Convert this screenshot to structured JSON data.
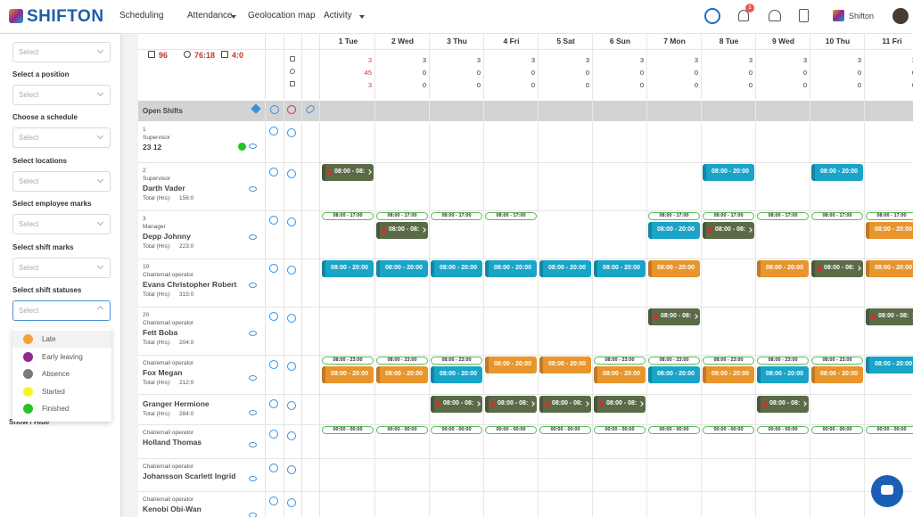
{
  "nav": {
    "logo": "SHIFTON",
    "menu": [
      "Scheduling",
      "Attendance",
      "Geolocation map",
      "Activity"
    ],
    "badge": "1",
    "user": "Shifton"
  },
  "filters": {
    "labels": [
      "Select a position",
      "Choose a schedule",
      "Select locations",
      "Select employee marks",
      "Select shift marks",
      "Select shift statuses"
    ],
    "placeholder": "Select",
    "show_hide": "Show / Hide"
  },
  "statuses": [
    {
      "name": "Late",
      "color": "#f0a23a"
    },
    {
      "name": "Early leaving",
      "color": "#8e2a8e"
    },
    {
      "name": "Absence",
      "color": "#7a7a7a"
    },
    {
      "name": "Started",
      "color": "#f5f526"
    },
    {
      "name": "Finished",
      "color": "#22c322"
    }
  ],
  "schedule": {
    "summary": [
      "96",
      "76:18",
      "4:0"
    ],
    "days": [
      "1 Tue",
      "2 Wed",
      "3 Thu",
      "4 Fri",
      "5 Sat",
      "6 Sun",
      "7 Mon",
      "8 Tue",
      "9 Wed",
      "10 Thu",
      "11 Fri"
    ],
    "counts": [
      [
        3,
        3,
        3,
        3,
        3,
        3,
        3,
        3,
        3,
        3,
        3
      ],
      [
        45,
        0,
        0,
        0,
        0,
        0,
        0,
        0,
        0,
        0,
        0
      ],
      [
        3,
        0,
        0,
        0,
        0,
        0,
        0,
        0,
        0,
        0,
        0
      ]
    ],
    "open_shifts": "Open Shifts",
    "total_label": "Total (Hrs):",
    "styles": {
      "dark": "#5b6b48",
      "blue": "#19a4c8",
      "orange": "#e8952e",
      "outline": "#5cb85c"
    },
    "employees": [
      {
        "number": "1",
        "role": "Supervisor",
        "name": "23 12",
        "total": null,
        "cells": [
          [],
          [],
          [],
          [],
          [],
          [],
          [],
          [],
          [],
          [],
          []
        ]
      },
      {
        "number": "2",
        "role": "Supervisor",
        "name": "Darth Vader",
        "total": "156:0",
        "cells": [
          [
            {
              "time": "08:00 - 08:",
              "style": "dark"
            }
          ],
          [],
          [],
          [],
          [],
          [],
          [],
          [
            {
              "time": "08:00 - 20:00",
              "style": "blue"
            }
          ],
          [],
          [
            {
              "time": "08:00 - 20:00",
              "style": "blue"
            }
          ],
          []
        ]
      },
      {
        "number": "3",
        "role": "Manager",
        "name": "Depp Johnny",
        "total": "223:0",
        "cells": [
          [
            {
              "time": "08:00 - 17:00",
              "style": "outline"
            }
          ],
          [
            {
              "time": "08:00 - 17:00",
              "style": "outline"
            },
            {
              "time": "08:00 - 08:",
              "style": "dark"
            }
          ],
          [
            {
              "time": "08:00 - 17:00",
              "style": "outline"
            }
          ],
          [
            {
              "time": "08:00 - 17:00",
              "style": "outline"
            }
          ],
          [],
          [],
          [
            {
              "time": "08:00 - 17:00",
              "style": "outline"
            },
            {
              "time": "08:00 - 20:00",
              "style": "blue"
            }
          ],
          [
            {
              "time": "08:00 - 17:00",
              "style": "outline"
            },
            {
              "time": "08:00 - 08:",
              "style": "dark"
            }
          ],
          [
            {
              "time": "08:00 - 17:00",
              "style": "outline"
            }
          ],
          [
            {
              "time": "08:00 - 17:00",
              "style": "outline"
            }
          ],
          [
            {
              "time": "08:00 - 17:00",
              "style": "outline"
            },
            {
              "time": "08:00 - 20:00",
              "style": "orange"
            }
          ]
        ]
      },
      {
        "number": "10",
        "role": "Chat/email operator",
        "name": "Evans Christopher Robert",
        "total": "315:0",
        "cells": [
          [
            {
              "time": "08:00 - 20:00",
              "style": "blue"
            }
          ],
          [
            {
              "time": "08:00 - 20:00",
              "style": "blue"
            }
          ],
          [
            {
              "time": "08:00 - 20:00",
              "style": "blue"
            }
          ],
          [
            {
              "time": "08:00 - 20:00",
              "style": "blue"
            }
          ],
          [
            {
              "time": "08:00 - 20:00",
              "style": "blue"
            }
          ],
          [
            {
              "time": "08:00 - 20:00",
              "style": "blue"
            }
          ],
          [
            {
              "time": "08:00 - 20:00",
              "style": "orange"
            }
          ],
          [],
          [
            {
              "time": "08:00 - 20:00",
              "style": "orange"
            }
          ],
          [
            {
              "time": "08:00 - 08:",
              "style": "dark"
            }
          ],
          [
            {
              "time": "08:00 - 20:00",
              "style": "orange"
            }
          ]
        ]
      },
      {
        "number": "20",
        "role": "Chat/email operator",
        "name": "Fett Boba",
        "total": "204:0",
        "cells": [
          [],
          [],
          [],
          [],
          [],
          [],
          [
            {
              "time": "08:00 - 08:",
              "style": "dark"
            }
          ],
          [],
          [],
          [],
          [
            {
              "time": "08:00 - 08:",
              "style": "dark"
            }
          ]
        ]
      },
      {
        "number": null,
        "role": "Chat/email operator",
        "name": "Fox Megan",
        "total": "212:0",
        "cells": [
          [
            {
              "time": "08:00 - 23:00",
              "style": "outline"
            },
            {
              "time": "08:00 - 20:00",
              "style": "orange"
            }
          ],
          [
            {
              "time": "08:00 - 23:00",
              "style": "outline"
            },
            {
              "time": "08:00 - 20:00",
              "style": "orange"
            }
          ],
          [
            {
              "time": "08:00 - 23:00",
              "style": "outline"
            },
            {
              "time": "08:00 - 20:00",
              "style": "blue"
            }
          ],
          [
            {
              "time": "08:00 - 20:00",
              "style": "orange"
            }
          ],
          [
            {
              "time": "08:00 - 20:00",
              "style": "orange"
            }
          ],
          [
            {
              "time": "08:00 - 23:00",
              "style": "outline"
            },
            {
              "time": "08:00 - 20:00",
              "style": "orange"
            }
          ],
          [
            {
              "time": "08:00 - 23:00",
              "style": "outline"
            },
            {
              "time": "08:00 - 20:00",
              "style": "blue"
            }
          ],
          [
            {
              "time": "08:00 - 23:00",
              "style": "outline"
            },
            {
              "time": "08:00 - 20:00",
              "style": "orange"
            }
          ],
          [
            {
              "time": "08:00 - 23:00",
              "style": "outline"
            },
            {
              "time": "08:00 - 20:00",
              "style": "blue"
            }
          ],
          [
            {
              "time": "08:00 - 23:00",
              "style": "outline"
            },
            {
              "time": "08:00 - 20:00",
              "style": "orange"
            }
          ],
          [
            {
              "time": "08:00 - 20:00",
              "style": "blue"
            }
          ]
        ]
      },
      {
        "number": null,
        "role": null,
        "name": "Granger Hermione",
        "total": "284:0",
        "cells": [
          [],
          [],
          [
            {
              "time": "08:00 - 08:",
              "style": "dark"
            }
          ],
          [
            {
              "time": "08:00 - 08:",
              "style": "dark"
            }
          ],
          [
            {
              "time": "08:00 - 08:",
              "style": "dark"
            }
          ],
          [
            {
              "time": "08:00 - 08:",
              "style": "dark"
            }
          ],
          [],
          [],
          [
            {
              "time": "08:00 - 08:",
              "style": "dark"
            }
          ],
          [],
          []
        ]
      },
      {
        "number": null,
        "role": "Chat/email operator",
        "name": "Holland Thomas",
        "total": null,
        "cells": [
          [
            {
              "time": "00:00 - 00:00",
              "style": "outline"
            }
          ],
          [
            {
              "time": "00:00 - 00:00",
              "style": "outline"
            }
          ],
          [
            {
              "time": "00:00 - 00:00",
              "style": "outline"
            }
          ],
          [
            {
              "time": "00:00 - 00:00",
              "style": "outline"
            }
          ],
          [
            {
              "time": "00:00 - 00:00",
              "style": "outline"
            }
          ],
          [
            {
              "time": "00:00 - 00:00",
              "style": "outline"
            }
          ],
          [
            {
              "time": "00:00 - 00:00",
              "style": "outline"
            }
          ],
          [
            {
              "time": "00:00 - 00:00",
              "style": "outline"
            }
          ],
          [
            {
              "time": "00:00 - 00:00",
              "style": "outline"
            }
          ],
          [
            {
              "time": "00:00 - 00:00",
              "style": "outline"
            }
          ],
          [
            {
              "time": "00:00 - 00:00",
              "style": "outline"
            }
          ]
        ]
      },
      {
        "number": null,
        "role": "Chat/email operator",
        "name": "Johansson Scarlett Ingrid",
        "total": null,
        "cells": [
          [],
          [],
          [],
          [],
          [],
          [],
          [],
          [],
          [],
          [],
          []
        ]
      },
      {
        "number": null,
        "role": "Chat/email operator",
        "name": "Kenobi Obi-Wan",
        "total": null,
        "cells": [
          [],
          [],
          [],
          [],
          [],
          [],
          [],
          [],
          [],
          [],
          []
        ]
      }
    ]
  }
}
